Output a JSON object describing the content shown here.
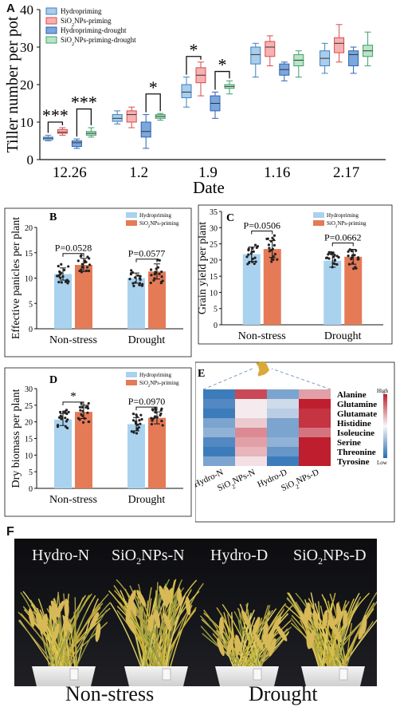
{
  "panels": {
    "a_letter": "A",
    "b_letter": "B",
    "c_letter": "C",
    "d_letter": "D",
    "e_letter": "E",
    "f_letter": "F"
  },
  "colors": {
    "hydro": "#a9cdea",
    "hydro_stroke": "#3f7fbf",
    "sio2": "#f6b2b2",
    "sio2_stroke": "#d84a4a",
    "hydro_drought": "#7aa7dd",
    "hydro_drought_stroke": "#2d62b2",
    "sio2_drought": "#b9e4c6",
    "sio2_drought_stroke": "#3ea06a",
    "bar_blue": "#a9d2ee",
    "bar_orange": "#e57a57"
  },
  "chart_data": [
    {
      "id": "A",
      "type": "box",
      "ylabel": "Tiller number per pot",
      "xlabel": "Date",
      "categories": [
        "12.26",
        "1.2",
        "1.9",
        "1.16",
        "2.17"
      ],
      "ylim": [
        0,
        40
      ],
      "yticks": [
        0,
        10,
        20,
        30,
        40
      ],
      "legend": [
        "Hydropriming",
        "SiO2NPs-priming",
        "Hydropriming-drought",
        "SiO2NPs-priming-drought"
      ],
      "legend_placement": "top-left",
      "series": [
        {
          "name": "Hydropriming",
          "boxes": [
            [
              5,
              5.3,
              5.7,
              6,
              6.5
            ],
            [
              9.5,
              10.2,
              11,
              12,
              13
            ],
            [
              14,
              16.5,
              18,
              20,
              22
            ],
            [
              22,
              25.5,
              28,
              30,
              31
            ],
            [
              23,
              25,
              27,
              29,
              31
            ]
          ]
        },
        {
          "name": "SiO2NPs-priming",
          "boxes": [
            [
              6.5,
              7,
              7.3,
              8,
              8.5
            ],
            [
              8.5,
              10,
              12,
              13,
              14
            ],
            [
              17,
              20.5,
              22.5,
              24.5,
              26
            ],
            [
              25,
              27.5,
              30,
              31.5,
              33
            ],
            [
              26,
              28.5,
              31,
              32.5,
              36
            ]
          ]
        },
        {
          "name": "Hydropriming-drought",
          "boxes": [
            [
              3,
              3.5,
              4.5,
              5,
              5.5
            ],
            [
              3,
              6,
              7.5,
              10,
              12
            ],
            [
              11,
              13,
              15,
              17,
              18
            ],
            [
              21,
              22.5,
              24,
              25.5,
              26
            ],
            [
              23,
              25,
              28,
              29,
              30
            ]
          ]
        },
        {
          "name": "SiO2NPs-priming-drought",
          "boxes": [
            [
              6,
              6.5,
              7,
              7.5,
              8.5
            ],
            [
              10.5,
              11,
              11.5,
              12,
              12.3
            ],
            [
              17.5,
              19,
              19.5,
              20,
              21
            ],
            [
              22,
              25,
              26.5,
              28,
              29
            ],
            [
              25,
              27.5,
              29,
              30.5,
              34
            ]
          ]
        }
      ],
      "annotations": [
        "***",
        "***",
        "*",
        "*",
        "*"
      ]
    },
    {
      "id": "B",
      "type": "bar",
      "ylabel": "Effective panicles per plant",
      "categories": [
        "Non-stress",
        "Drought"
      ],
      "ylim": [
        0,
        20
      ],
      "yticks": [
        0,
        5,
        10,
        15,
        20
      ],
      "legend": [
        "Hydropriming",
        "SiO2NPs-priming"
      ],
      "series": [
        {
          "name": "Hydropriming",
          "values": [
            10.8,
            10.0
          ],
          "errors": [
            1.2,
            1.0
          ]
        },
        {
          "name": "SiO2NPs-priming",
          "values": [
            12.6,
            11.3
          ],
          "errors": [
            1.3,
            1.5
          ]
        }
      ],
      "annotations": [
        "P=0.0528",
        "P=0.0577"
      ]
    },
    {
      "id": "C",
      "type": "bar",
      "ylabel": "Grain yield per plant",
      "categories": [
        "Non-stress",
        "Drought"
      ],
      "ylim": [
        0,
        35
      ],
      "yticks": [
        0,
        5,
        10,
        15,
        20,
        25,
        30,
        35
      ],
      "legend": [
        "Hydropriming",
        "SiO2NPs-priming"
      ],
      "series": [
        {
          "name": "Hydropriming",
          "values": [
            21.8,
            19.8
          ],
          "errors": [
            2.2,
            2.0
          ]
        },
        {
          "name": "SiO2NPs-priming",
          "values": [
            23.4,
            21.0
          ],
          "errors": [
            2.6,
            2.3
          ]
        }
      ],
      "annotations": [
        "P=0.0506",
        "P=0.0662"
      ]
    },
    {
      "id": "D",
      "type": "bar",
      "ylabel": "Dry biomass per plant",
      "categories": [
        "Non-stress",
        "Drought"
      ],
      "ylim": [
        0,
        30
      ],
      "yticks": [
        0,
        5,
        10,
        15,
        20,
        25,
        30
      ],
      "legend": [
        "Hydropriming",
        "SiO2NPs-priming"
      ],
      "series": [
        {
          "name": "Hydropriming",
          "values": [
            20.7,
            19.3
          ],
          "errors": [
            1.8,
            2.0
          ]
        },
        {
          "name": "SiO2NPs-priming",
          "values": [
            23.0,
            21.2
          ],
          "errors": [
            2.0,
            1.8
          ]
        }
      ],
      "annotations": [
        "*",
        "P=0.0970"
      ]
    },
    {
      "id": "E",
      "type": "heatmap",
      "columns": [
        "Hydro-N",
        "SiO2NPs-N",
        "Hydro-D",
        "SiO2NPs-D"
      ],
      "rows": [
        "Alanine",
        "Glutamine",
        "Glutamate",
        "Histidine",
        "Isoleucine",
        "Serine",
        "Threonine",
        "Tyrosine"
      ],
      "values": [
        [
          -0.9,
          0.8,
          -0.6,
          0.4
        ],
        [
          -0.8,
          0.05,
          -0.2,
          1.0
        ],
        [
          -0.9,
          0.05,
          -0.3,
          0.9
        ],
        [
          -0.6,
          0.2,
          -0.6,
          0.9
        ],
        [
          -0.5,
          0.5,
          -0.6,
          0.6
        ],
        [
          -0.8,
          0.4,
          -0.5,
          1.0
        ],
        [
          -0.9,
          0.3,
          -0.7,
          1.0
        ],
        [
          -0.6,
          0.1,
          -0.9,
          1.0
        ]
      ],
      "scale_labels": {
        "high": "High",
        "low": "Low"
      }
    }
  ],
  "photo": {
    "labels": [
      "Hydro-N",
      "SiO2NPs-N",
      "Hydro-D",
      "SiO2NPs-D"
    ],
    "footer": [
      "Non-stress",
      "Drought"
    ]
  }
}
